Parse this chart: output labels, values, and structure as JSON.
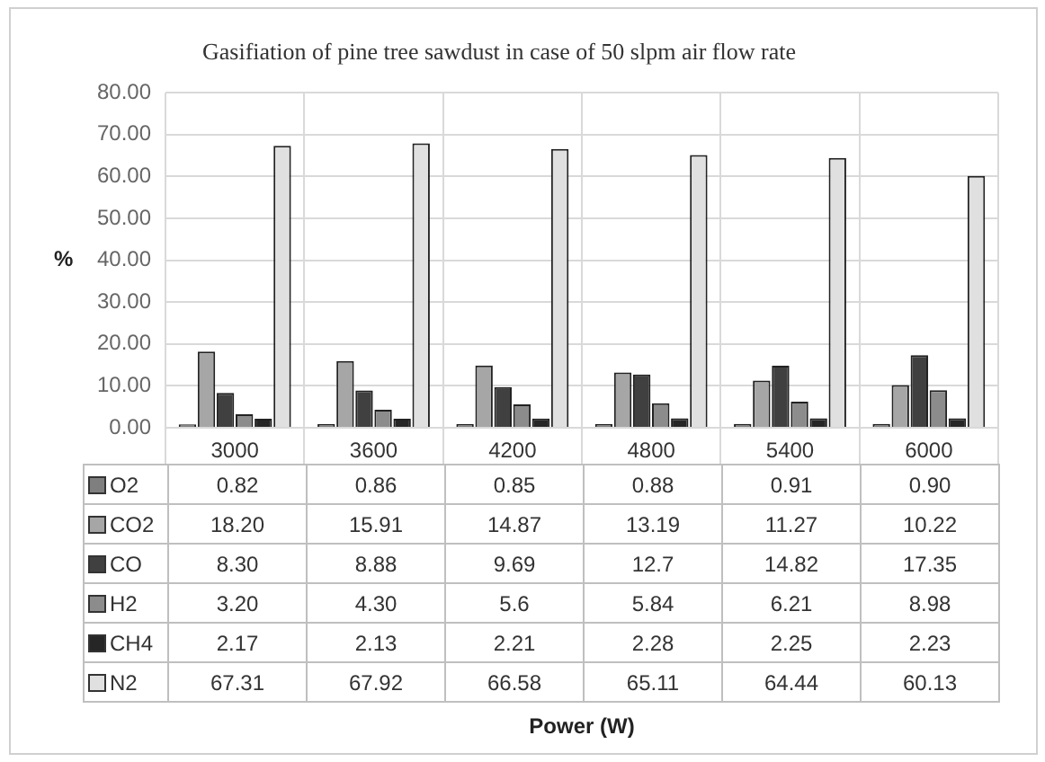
{
  "chart_data": {
    "type": "bar",
    "title": "Gasifiation of pine tree sawdust in case of 50 slpm air flow rate",
    "annotations": [
      "Power (W)"
    ],
    "ylabel": "%",
    "categories": [
      "3000",
      "3600",
      "4200",
      "4800",
      "5400",
      "6000"
    ],
    "series": [
      {
        "name": "O2",
        "color": "#7f7f7f",
        "values": [
          0.82,
          0.86,
          0.85,
          0.88,
          0.91,
          0.9
        ],
        "value_labels": [
          "0.82",
          "0.86",
          "0.85",
          "0.88",
          "0.91",
          "0.90"
        ]
      },
      {
        "name": "CO2",
        "color": "#a6a6a6",
        "values": [
          18.2,
          15.91,
          14.87,
          13.19,
          11.27,
          10.22
        ],
        "value_labels": [
          "18.20",
          "15.91",
          "14.87",
          "13.19",
          "11.27",
          "10.22"
        ]
      },
      {
        "name": "CO",
        "color": "#404040",
        "values": [
          8.3,
          8.88,
          9.69,
          12.7,
          14.82,
          17.35
        ],
        "value_labels": [
          "8.30",
          "8.88",
          "9.69",
          "12.7",
          "14.82",
          "17.35"
        ]
      },
      {
        "name": "H2",
        "color": "#8c8c8c",
        "values": [
          3.2,
          4.3,
          5.6,
          5.84,
          6.21,
          8.98
        ],
        "value_labels": [
          "3.20",
          "4.30",
          "5.6",
          "5.84",
          "6.21",
          "8.98"
        ]
      },
      {
        "name": "CH4",
        "color": "#262626",
        "values": [
          2.17,
          2.13,
          2.21,
          2.28,
          2.25,
          2.23
        ],
        "value_labels": [
          "2.17",
          "2.13",
          "2.21",
          "2.28",
          "2.25",
          "2.23"
        ]
      },
      {
        "name": "N2",
        "color": "#e0e0e0",
        "values": [
          67.31,
          67.92,
          66.58,
          65.11,
          64.44,
          60.13
        ],
        "value_labels": [
          "67.31",
          "67.92",
          "66.58",
          "65.11",
          "64.44",
          "60.13"
        ]
      }
    ],
    "ylim": [
      0,
      80
    ],
    "yticks": [
      {
        "value": 0,
        "label": "0.00"
      },
      {
        "value": 10,
        "label": "10.00"
      },
      {
        "value": 20,
        "label": "20.00"
      },
      {
        "value": 30,
        "label": "30.00"
      },
      {
        "value": 40,
        "label": "40.00"
      },
      {
        "value": 50,
        "label": "50.00"
      },
      {
        "value": 60,
        "label": "60.00"
      },
      {
        "value": 70,
        "label": "70.00"
      },
      {
        "value": 80,
        "label": "80.00"
      }
    ],
    "grid": true,
    "legend": "bottom"
  }
}
